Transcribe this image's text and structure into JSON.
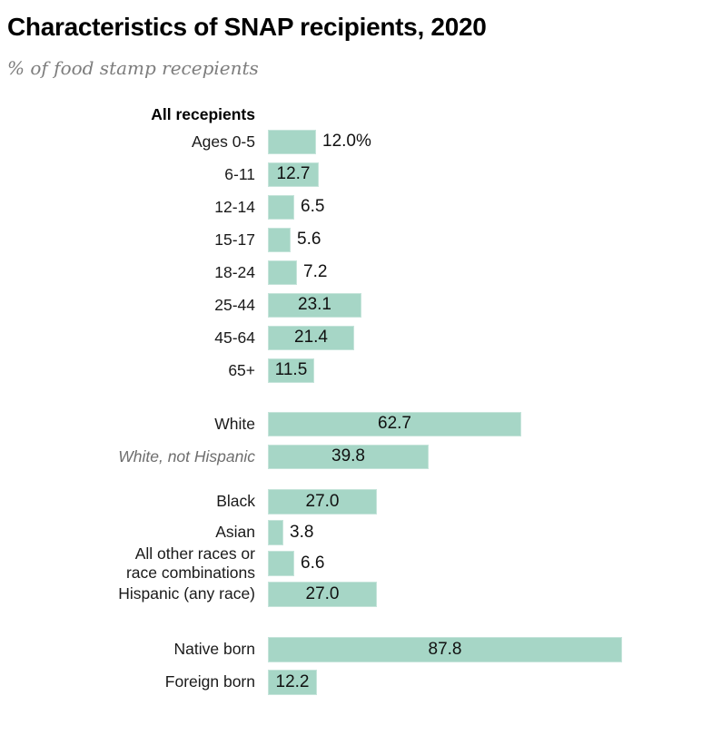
{
  "header": {
    "title": "Characteristics of SNAP recipients, 2020",
    "subtitle": "% of food stamp recepients"
  },
  "chart_data": {
    "type": "bar",
    "orientation": "horizontal",
    "title": "Characteristics of SNAP recipients, 2020",
    "subtitle": "% of food stamp recepients",
    "group_header": "All recepients",
    "unit": "%",
    "bar_color": "#a6d6c6",
    "axis_shown": false,
    "xlim": [
      0,
      100
    ],
    "sections": [
      {
        "id": "age",
        "rows": [
          {
            "label": "Ages 0-5",
            "value": 12.0,
            "value_label": "12.0%",
            "value_position": "outside"
          },
          {
            "label": "6-11",
            "value": 12.7,
            "value_label": "12.7",
            "value_position": "inside"
          },
          {
            "label": "12-14",
            "value": 6.5,
            "value_label": "6.5",
            "value_position": "outside"
          },
          {
            "label": "15-17",
            "value": 5.6,
            "value_label": "5.6",
            "value_position": "outside"
          },
          {
            "label": "18-24",
            "value": 7.2,
            "value_label": "7.2",
            "value_position": "outside"
          },
          {
            "label": "25-44",
            "value": 23.1,
            "value_label": "23.1",
            "value_position": "inside"
          },
          {
            "label": "45-64",
            "value": 21.4,
            "value_label": "21.4",
            "value_position": "inside"
          },
          {
            "label": "65+",
            "value": 11.5,
            "value_label": "11.5",
            "value_position": "inside"
          }
        ]
      },
      {
        "id": "white",
        "rows": [
          {
            "label": "White",
            "value": 62.7,
            "value_label": "62.7",
            "value_position": "inside"
          },
          {
            "label": "White, not Hispanic",
            "value": 39.8,
            "value_label": "39.8",
            "value_position": "inside",
            "label_style": "italic-gray"
          }
        ]
      },
      {
        "id": "race",
        "rows": [
          {
            "label": "Black",
            "value": 27.0,
            "value_label": "27.0",
            "value_position": "inside"
          },
          {
            "label": "Asian",
            "value": 3.8,
            "value_label": "3.8",
            "value_position": "outside"
          },
          {
            "label": "All other races or\nrace combinations",
            "value": 6.6,
            "value_label": "6.6",
            "value_position": "outside"
          },
          {
            "label": "Hispanic (any race)",
            "value": 27.0,
            "value_label": "27.0",
            "value_position": "inside"
          }
        ]
      },
      {
        "id": "nativity",
        "rows": [
          {
            "label": "Native born",
            "value": 87.8,
            "value_label": "87.8",
            "value_position": "inside"
          },
          {
            "label": "Foreign born",
            "value": 12.2,
            "value_label": "12.2",
            "value_position": "inside"
          }
        ]
      }
    ]
  }
}
